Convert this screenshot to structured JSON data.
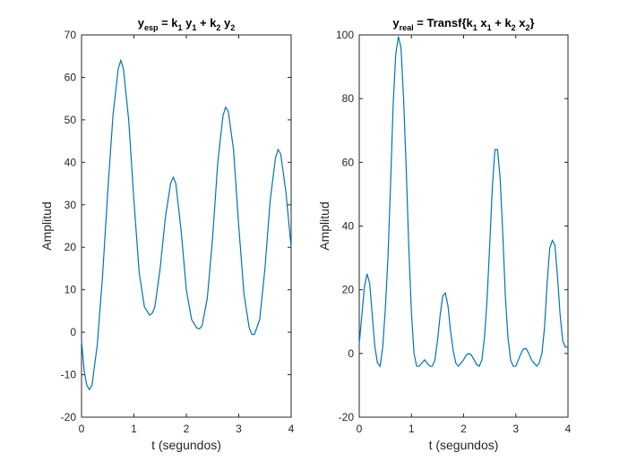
{
  "chart_data": [
    {
      "type": "line",
      "title": {
        "main": "y",
        "main_sub": "esp",
        "rest": [
          {
            "t": " = k"
          },
          {
            "s": "1"
          },
          {
            "t": " y"
          },
          {
            "s": "1"
          },
          {
            "t": " + k"
          },
          {
            "s": "2"
          },
          {
            "t": " y"
          },
          {
            "s": "2"
          }
        ]
      },
      "xlabel": "t (segundos)",
      "ylabel": "Amplitud",
      "xlim": [
        0,
        4
      ],
      "ylim": [
        -20,
        70
      ],
      "xticks": [
        "0",
        "1",
        "2",
        "3",
        "4"
      ],
      "yticks": [
        "-20",
        "-10",
        "0",
        "10",
        "20",
        "30",
        "40",
        "50",
        "60",
        "70"
      ],
      "grid": false,
      "color": "#0072BD",
      "series": [
        {
          "x": [
            0,
            0.05,
            0.1,
            0.15,
            0.2,
            0.3,
            0.4,
            0.5,
            0.6,
            0.7,
            0.75,
            0.8,
            0.9,
            1.0,
            1.1,
            1.2,
            1.3,
            1.35,
            1.4,
            1.5,
            1.6,
            1.7,
            1.75,
            1.8,
            1.9,
            2.0,
            2.1,
            2.2,
            2.25,
            2.3,
            2.4,
            2.5,
            2.6,
            2.7,
            2.75,
            2.8,
            2.9,
            3.0,
            3.1,
            3.2,
            3.25,
            3.3,
            3.4,
            3.5,
            3.6,
            3.7,
            3.75,
            3.8,
            3.9,
            4.0
          ],
          "y": [
            -2,
            -9,
            -12.5,
            -13.5,
            -12.5,
            -3,
            13,
            33,
            51,
            62,
            64,
            62,
            50,
            31,
            14,
            6,
            4,
            4.5,
            6,
            15,
            27,
            35,
            36.5,
            35,
            24,
            10,
            3,
            1,
            0.8,
            1.5,
            8,
            22,
            40,
            51,
            53,
            52,
            43,
            25,
            9,
            1,
            -0.5,
            -0.5,
            3,
            15,
            31,
            41,
            43,
            42,
            33,
            20
          ]
        }
      ]
    },
    {
      "type": "line",
      "title": {
        "main": "y",
        "main_sub": "real",
        "rest": [
          {
            "t": " = Transf{k"
          },
          {
            "s": "1"
          },
          {
            "t": " x"
          },
          {
            "s": "1"
          },
          {
            "t": " + k"
          },
          {
            "s": "2"
          },
          {
            "t": " x"
          },
          {
            "s": "2"
          },
          {
            "t": "}"
          }
        ]
      },
      "xlabel": "t (segundos)",
      "ylabel": "Amplitud",
      "xlim": [
        0,
        4
      ],
      "ylim": [
        -20,
        100
      ],
      "xticks": [
        "0",
        "1",
        "2",
        "3",
        "4"
      ],
      "yticks": [
        "-20",
        "0",
        "20",
        "40",
        "60",
        "80",
        "100"
      ],
      "grid": false,
      "color": "#0072BD",
      "series": [
        {
          "x": [
            0,
            0.05,
            0.1,
            0.15,
            0.2,
            0.25,
            0.3,
            0.35,
            0.4,
            0.45,
            0.5,
            0.55,
            0.6,
            0.65,
            0.7,
            0.75,
            0.8,
            0.85,
            0.9,
            0.95,
            1.0,
            1.05,
            1.1,
            1.15,
            1.2,
            1.25,
            1.3,
            1.35,
            1.4,
            1.45,
            1.5,
            1.55,
            1.6,
            1.65,
            1.7,
            1.75,
            1.8,
            1.85,
            1.9,
            1.95,
            2.0,
            2.05,
            2.1,
            2.15,
            2.2,
            2.25,
            2.3,
            2.35,
            2.4,
            2.45,
            2.5,
            2.55,
            2.6,
            2.65,
            2.7,
            2.75,
            2.8,
            2.85,
            2.9,
            2.95,
            3.0,
            3.05,
            3.1,
            3.15,
            3.2,
            3.25,
            3.3,
            3.35,
            3.4,
            3.45,
            3.5,
            3.55,
            3.6,
            3.65,
            3.7,
            3.75,
            3.8,
            3.85,
            3.9,
            3.95,
            4.0
          ],
          "y": [
            3,
            12,
            21,
            25,
            22,
            12,
            2,
            -3,
            -4,
            2,
            14,
            30,
            53,
            78,
            94,
            99.5,
            96,
            80,
            58,
            33,
            13,
            0,
            -4,
            -4,
            -3,
            -2,
            -3,
            -4,
            -4,
            -2,
            4,
            12,
            18,
            19,
            15,
            7,
            1,
            -3,
            -4,
            -3,
            -2,
            -0.5,
            0,
            -0.5,
            -2,
            -3.5,
            -4,
            -2,
            5,
            17,
            34,
            52,
            64,
            64,
            55,
            38,
            18,
            5,
            -2,
            -4,
            -4,
            -2,
            0,
            1.5,
            1.5,
            0,
            -2,
            -3,
            -4,
            -3,
            0,
            8,
            22,
            33,
            35.5,
            34,
            24,
            12,
            4,
            2,
            2
          ]
        }
      ]
    }
  ]
}
